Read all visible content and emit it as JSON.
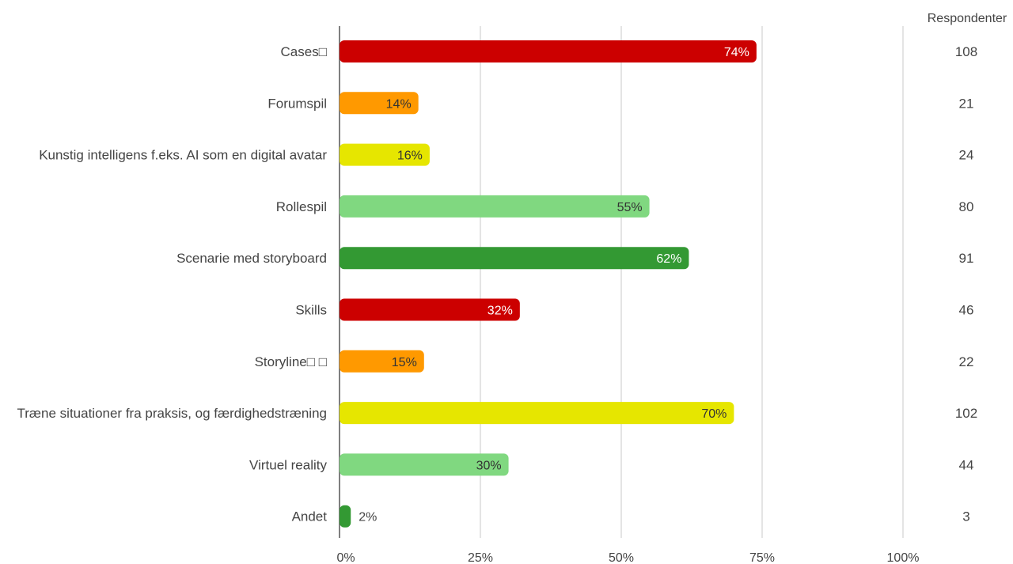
{
  "chart_data": {
    "type": "bar",
    "orientation": "horizontal",
    "categories": [
      "Cases□",
      "Forumspil",
      "Kunstig intelligens f.eks. AI som en digital avatar",
      "Rollespil",
      "Scenarie  med storyboard",
      "Skills",
      "Storyline□ □",
      "Træne situationer fra praksis, og færdighedstræning",
      "Virtuel reality",
      "Andet"
    ],
    "values": [
      74,
      14,
      16,
      55,
      62,
      32,
      15,
      70,
      30,
      2
    ],
    "value_labels": [
      "74%",
      "14%",
      "16%",
      "55%",
      "62%",
      "32%",
      "15%",
      "70%",
      "30%",
      "2%"
    ],
    "respondents": [
      108,
      21,
      24,
      80,
      91,
      46,
      22,
      102,
      44,
      3
    ],
    "respondents_header": "Respondenter",
    "bar_colors": [
      "#cc0000",
      "#ff9900",
      "#e6e600",
      "#80d880",
      "#339933",
      "#cc0000",
      "#ff9900",
      "#e6e600",
      "#80d880",
      "#339933"
    ],
    "label_colors": [
      "#ffffff",
      "#333333",
      "#333333",
      "#333333",
      "#ffffff",
      "#ffffff",
      "#333333",
      "#333333",
      "#333333",
      "#444444"
    ],
    "x_ticks": [
      "0%",
      "25%",
      "50%",
      "75%",
      "100%"
    ],
    "xlim": [
      0,
      100
    ],
    "grid": true,
    "title": "",
    "xlabel": "",
    "ylabel": ""
  }
}
